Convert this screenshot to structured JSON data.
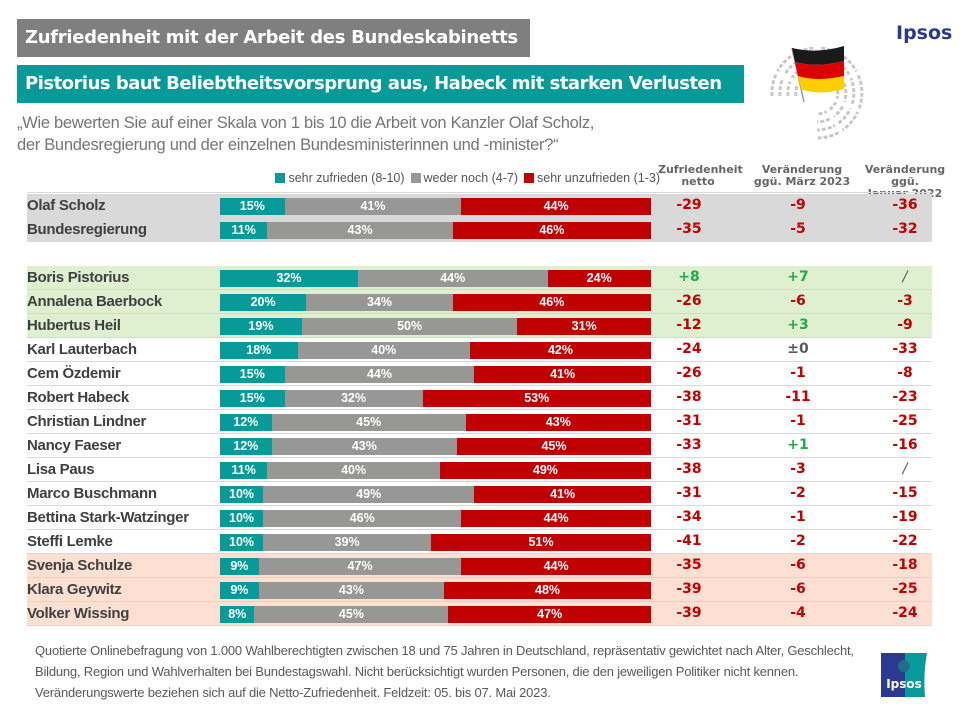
{
  "header": {
    "title": "Zufriedenheit mit der Arbeit des Bundeskabinetts",
    "subtitle": "Pistorius baut Beliebtheitsvorsprung aus, Habeck mit starken Verlusten",
    "question_line1": "„Wie bewerten Sie auf einer Skala von 1 bis 10 die Arbeit von Kanzler Olaf Scholz,",
    "question_line2": "der Bundesregierung und der einzelnen Bundesministerinnen und -minister?“",
    "brand": "Ipsos",
    "brand_logo_text": "Ipsos"
  },
  "colors": {
    "positive": "#079a98",
    "neutral": "#979795",
    "negative": "#c00000",
    "value_negative": "#c00000",
    "value_positive": "#22a94b",
    "value_neutral": "#595959",
    "band_gray": "#d9d9d9",
    "band_green": "#def0cf",
    "band_pink": "#fde0d2"
  },
  "chart_data": {
    "type": "bar",
    "subtype": "stacked-horizontal-100",
    "title": "Zufriedenheit mit der Arbeit des Bundeskabinetts",
    "legend": [
      {
        "key": "pos",
        "label": "sehr zufrieden (8-10)"
      },
      {
        "key": "neu",
        "label": "weder noch (4-7)"
      },
      {
        "key": "neg",
        "label": "sehr unzufrieden (1-3)"
      }
    ],
    "legend_position": "top-right",
    "columns": [
      "Zufriedenheit netto",
      "Veränderung ggü. März 2023",
      "Veränderung ggü. Januar 2022"
    ],
    "column_headers": [
      {
        "line1": "Zufriedenheit",
        "line2": "netto"
      },
      {
        "line1": "Veränderung",
        "line2": "ggü. März 2023"
      },
      {
        "line1": "Veränderung ggü.",
        "line2": "Januar 2022"
      }
    ],
    "rows": [
      {
        "name": "Olaf  Scholz",
        "group": "gray",
        "pos": 15,
        "neu": 41,
        "neg": 44,
        "netto": "-29",
        "mar2023": "-9",
        "jan2022": "-36"
      },
      {
        "name": "Bundesregierung",
        "group": "gray",
        "pos": 11,
        "neu": 43,
        "neg": 46,
        "netto": "-35",
        "mar2023": "-5",
        "jan2022": "-32"
      },
      {
        "name": "Boris Pistorius",
        "group": "green",
        "pos": 32,
        "neu": 44,
        "neg": 24,
        "netto": "+8",
        "mar2023": "+7",
        "jan2022": "/"
      },
      {
        "name": "Annalena Baerbock",
        "group": "green",
        "pos": 20,
        "neu": 34,
        "neg": 46,
        "netto": "-26",
        "mar2023": "-6",
        "jan2022": "-3"
      },
      {
        "name": "Hubertus Heil",
        "group": "green",
        "pos": 19,
        "neu": 50,
        "neg": 31,
        "netto": "-12",
        "mar2023": "+3",
        "jan2022": "-9"
      },
      {
        "name": "Karl Lauterbach",
        "group": "white",
        "pos": 18,
        "neu": 40,
        "neg": 42,
        "netto": "-24",
        "mar2023": "±0",
        "jan2022": "-33"
      },
      {
        "name": "Cem Özdemir",
        "group": "white",
        "pos": 15,
        "neu": 44,
        "neg": 41,
        "netto": "-26",
        "mar2023": "-1",
        "jan2022": "-8"
      },
      {
        "name": "Robert Habeck",
        "group": "white",
        "pos": 15,
        "neu": 32,
        "neg": 53,
        "netto": "-38",
        "mar2023": "-11",
        "jan2022": "-23"
      },
      {
        "name": "Christian Lindner",
        "group": "white",
        "pos": 12,
        "neu": 45,
        "neg": 43,
        "netto": "-31",
        "mar2023": "-1",
        "jan2022": "-25"
      },
      {
        "name": "Nancy Faeser",
        "group": "white",
        "pos": 12,
        "neu": 43,
        "neg": 45,
        "netto": "-33",
        "mar2023": "+1",
        "jan2022": "-16"
      },
      {
        "name": "Lisa Paus",
        "group": "white",
        "pos": 11,
        "neu": 40,
        "neg": 49,
        "netto": "-38",
        "mar2023": "-3",
        "jan2022": "/"
      },
      {
        "name": "Marco Buschmann",
        "group": "white",
        "pos": 10,
        "neu": 49,
        "neg": 41,
        "netto": "-31",
        "mar2023": "-2",
        "jan2022": "-15"
      },
      {
        "name": "Bettina Stark-Watzinger",
        "group": "white",
        "pos": 10,
        "neu": 46,
        "neg": 44,
        "netto": "-34",
        "mar2023": "-1",
        "jan2022": "-19"
      },
      {
        "name": "Steffi Lemke",
        "group": "white",
        "pos": 10,
        "neu": 39,
        "neg": 51,
        "netto": "-41",
        "mar2023": "-2",
        "jan2022": "-22"
      },
      {
        "name": "Svenja Schulze",
        "group": "pink",
        "pos": 9,
        "neu": 47,
        "neg": 44,
        "netto": "-35",
        "mar2023": "-6",
        "jan2022": "-18"
      },
      {
        "name": "Klara Geywitz",
        "group": "pink",
        "pos": 9,
        "neu": 43,
        "neg": 48,
        "netto": "-39",
        "mar2023": "-6",
        "jan2022": "-25"
      },
      {
        "name": "Volker Wissing",
        "group": "pink",
        "pos": 8,
        "neu": 45,
        "neg": 47,
        "netto": "-39",
        "mar2023": "-4",
        "jan2022": "-24"
      }
    ],
    "xlim": [
      0,
      100
    ],
    "unit": "%"
  },
  "footnote": "Quotierte Onlinebefragung von 1.000 Wahlberechtigten zwischen 18 und 75 Jahren in Deutschland, repräsentativ gewichtet nach Alter, Geschlecht, Bildung, Region und Wahlverhalten bei Bundestagswahl. Nicht berücksichtigt wurden  Personen, die den jeweiligen Politiker nicht kennen. Veränderungswerte beziehen sich auf die Netto-Zufriedenheit.  Feldzeit: 05. bis 07. Mai 2023."
}
